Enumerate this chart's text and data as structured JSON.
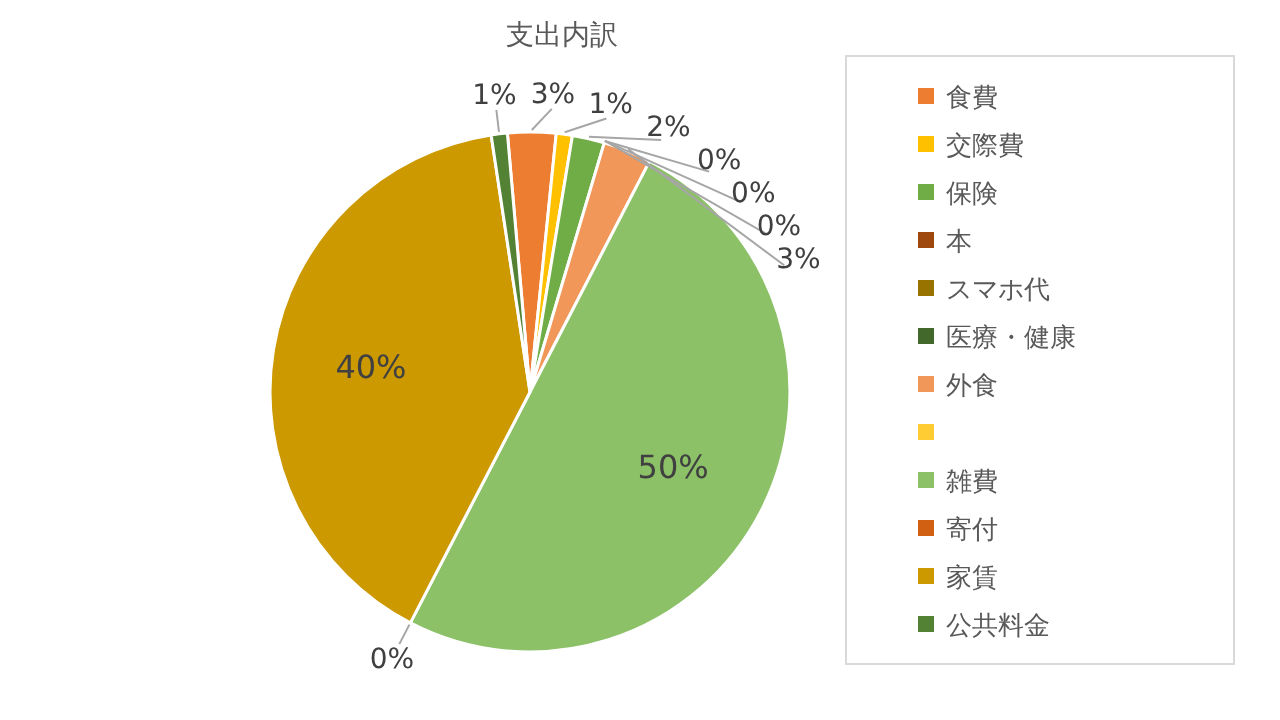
{
  "chart_data": {
    "type": "pie",
    "title": "支出内訳",
    "categories": [
      "食費",
      "交際費",
      "保険",
      "本",
      "スマホ代",
      "医療・健康",
      "外食",
      null,
      "雑費",
      "寄付",
      "家賃",
      "公共料金"
    ],
    "values": [
      3,
      1,
      2,
      0,
      0,
      0,
      3,
      0,
      50,
      0,
      40,
      1
    ],
    "value_labels": [
      "3%",
      "1%",
      "2%",
      "0%",
      "0%",
      "0%",
      "3%",
      null,
      "50%",
      "0%",
      "40%",
      "1%"
    ],
    "colors": [
      "#ed7d31",
      "#ffc000",
      "#70ad47",
      "#9e480e",
      "#997300",
      "#43682b",
      "#f1975a",
      "#ffcd33",
      "#8cc168",
      "#d26012",
      "#cc9900",
      "#548235"
    ],
    "legend": "right"
  }
}
